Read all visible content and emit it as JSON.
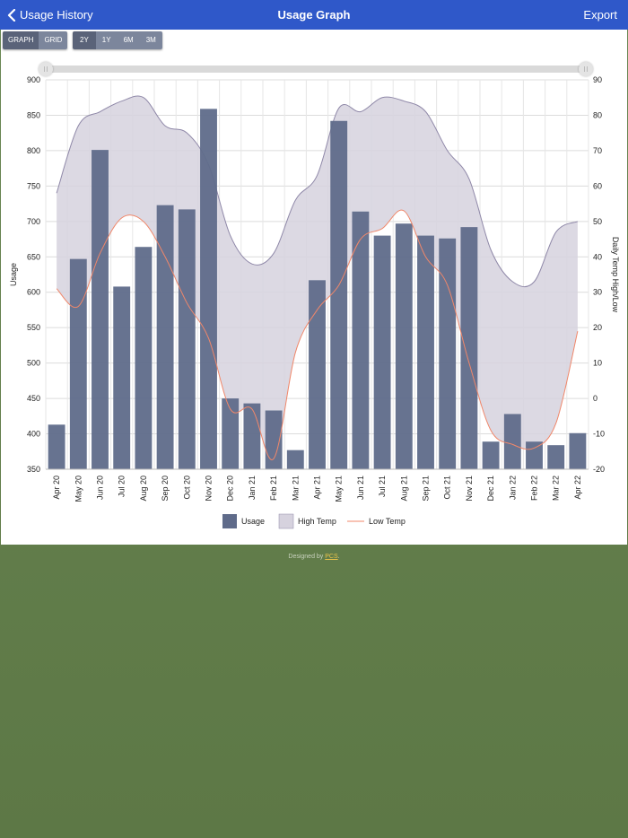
{
  "header": {
    "back_label": "Usage History",
    "title": "Usage Graph",
    "export_label": "Export"
  },
  "view_toggle": [
    "GRAPH",
    "GRID"
  ],
  "view_active": "GRAPH",
  "range_buttons": [
    "2Y",
    "1Y",
    "6M",
    "3M"
  ],
  "range_active": "2Y",
  "footer": {
    "prefix": "Designed by ",
    "link": "PCS",
    "suffix": "."
  },
  "colors": {
    "usage": "#5f6b8a",
    "high_fill": "#d6d2de",
    "high_line": "#8f88a8",
    "low_line": "#f0876a",
    "header": "#2f58c9"
  },
  "chart_data": {
    "type": "bar",
    "categories": [
      "Apr 20",
      "May 20",
      "Jun 20",
      "Jul 20",
      "Aug 20",
      "Sep 20",
      "Oct 20",
      "Nov 20",
      "Dec 20",
      "Jan 21",
      "Feb 21",
      "Mar 21",
      "Apr 21",
      "May 21",
      "Jun 21",
      "Jul 21",
      "Aug 21",
      "Sep 21",
      "Oct 21",
      "Nov 21",
      "Dec 21",
      "Jan 22",
      "Feb 22",
      "Mar 22",
      "Apr 22"
    ],
    "ylabel": "Usage",
    "y2label": "Daily Temp High/Low",
    "ylim": [
      350,
      900
    ],
    "y2lim": [
      -20,
      90
    ],
    "yticks": [
      350,
      400,
      450,
      500,
      550,
      600,
      650,
      700,
      750,
      800,
      850,
      900
    ],
    "y2ticks": [
      -20,
      -10,
      0,
      10,
      20,
      30,
      40,
      50,
      60,
      70,
      80,
      90
    ],
    "grid": true,
    "legend_position": "bottom",
    "series": [
      {
        "name": "Usage",
        "type": "bar",
        "axis": "left",
        "values": [
          413,
          647,
          801,
          608,
          664,
          723,
          717,
          859,
          450,
          443,
          433,
          377,
          617,
          842,
          714,
          680,
          697,
          680,
          676,
          692,
          389,
          428,
          389,
          384,
          401
        ]
      },
      {
        "name": "High Temp",
        "type": "area",
        "axis": "right",
        "values": [
          58,
          77,
          81,
          84,
          85,
          77,
          75,
          66,
          46,
          38,
          41,
          56,
          63,
          82,
          81,
          85,
          84,
          81,
          70,
          62,
          42,
          33,
          33,
          47,
          50
        ]
      },
      {
        "name": "Low Temp",
        "type": "line",
        "axis": "right",
        "values": [
          31,
          26,
          41,
          51,
          50,
          40,
          27,
          17,
          -3,
          -3,
          -17,
          13,
          25,
          32,
          45,
          48,
          53,
          40,
          32,
          10,
          -9,
          -13,
          -14,
          -7,
          19
        ]
      }
    ]
  }
}
